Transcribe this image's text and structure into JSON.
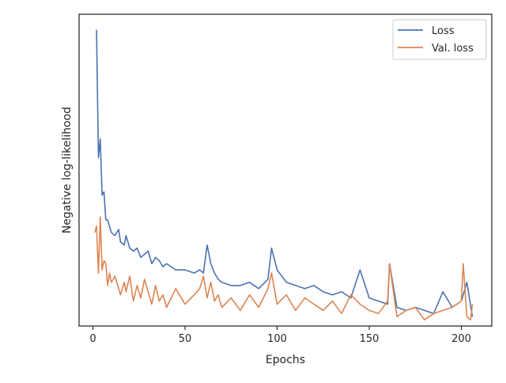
{
  "chart_data": {
    "type": "line",
    "xlabel": "Epochs",
    "ylabel": "Negative log-likelihood",
    "xlim": [
      -7.5,
      216.5
    ],
    "ylim": [
      0.0,
      1.0
    ],
    "y_ticks_shown": false,
    "grid": false,
    "legend_position": "top-right",
    "x_ticks": [
      0,
      50,
      100,
      150,
      200
    ],
    "series": [
      {
        "name": "Loss",
        "color": "#4c72b0",
        "x": [
          2,
          3,
          4,
          5,
          6,
          7,
          8,
          10,
          12,
          14,
          15,
          17,
          18,
          20,
          22,
          24,
          26,
          28,
          30,
          32,
          34,
          36,
          38,
          40,
          45,
          50,
          55,
          58,
          60,
          62,
          64,
          66,
          68,
          70,
          75,
          80,
          85,
          90,
          95,
          97,
          100,
          105,
          110,
          115,
          120,
          125,
          130,
          135,
          140,
          145,
          150,
          155,
          160,
          161,
          165,
          170,
          175,
          180,
          185,
          190,
          195,
          200,
          203,
          206
        ],
        "y": [
          0.95,
          0.54,
          0.6,
          0.42,
          0.43,
          0.34,
          0.34,
          0.3,
          0.29,
          0.31,
          0.27,
          0.26,
          0.29,
          0.25,
          0.24,
          0.25,
          0.22,
          0.23,
          0.24,
          0.2,
          0.22,
          0.21,
          0.19,
          0.2,
          0.18,
          0.18,
          0.17,
          0.18,
          0.17,
          0.26,
          0.2,
          0.17,
          0.15,
          0.14,
          0.13,
          0.13,
          0.14,
          0.12,
          0.15,
          0.25,
          0.18,
          0.14,
          0.13,
          0.12,
          0.13,
          0.11,
          0.1,
          0.11,
          0.09,
          0.18,
          0.09,
          0.08,
          0.07,
          0.2,
          0.06,
          0.05,
          0.06,
          0.05,
          0.04,
          0.11,
          0.06,
          0.08,
          0.14,
          0.03
        ]
      },
      {
        "name": "Val. loss",
        "color": "#dd8452",
        "x": [
          1,
          2,
          3,
          4,
          5,
          6,
          7,
          8,
          9,
          10,
          12,
          14,
          15,
          17,
          18,
          20,
          22,
          24,
          26,
          28,
          30,
          32,
          34,
          36,
          38,
          40,
          45,
          50,
          55,
          58,
          60,
          62,
          64,
          66,
          68,
          70,
          75,
          80,
          85,
          90,
          95,
          97,
          100,
          105,
          110,
          115,
          120,
          125,
          130,
          135,
          140,
          145,
          150,
          155,
          160,
          161,
          165,
          170,
          175,
          180,
          185,
          190,
          195,
          200,
          201,
          203,
          205,
          206
        ],
        "y": [
          0.3,
          0.32,
          0.17,
          0.35,
          0.18,
          0.21,
          0.2,
          0.13,
          0.17,
          0.14,
          0.16,
          0.12,
          0.1,
          0.14,
          0.11,
          0.16,
          0.08,
          0.13,
          0.09,
          0.15,
          0.11,
          0.07,
          0.13,
          0.08,
          0.1,
          0.06,
          0.12,
          0.07,
          0.1,
          0.12,
          0.16,
          0.09,
          0.14,
          0.08,
          0.1,
          0.06,
          0.09,
          0.05,
          0.1,
          0.06,
          0.12,
          0.17,
          0.07,
          0.1,
          0.05,
          0.09,
          0.07,
          0.05,
          0.08,
          0.04,
          0.1,
          0.07,
          0.05,
          0.04,
          0.08,
          0.2,
          0.03,
          0.05,
          0.06,
          0.02,
          0.04,
          0.05,
          0.06,
          0.08,
          0.2,
          0.03,
          0.02,
          0.07
        ]
      }
    ]
  }
}
